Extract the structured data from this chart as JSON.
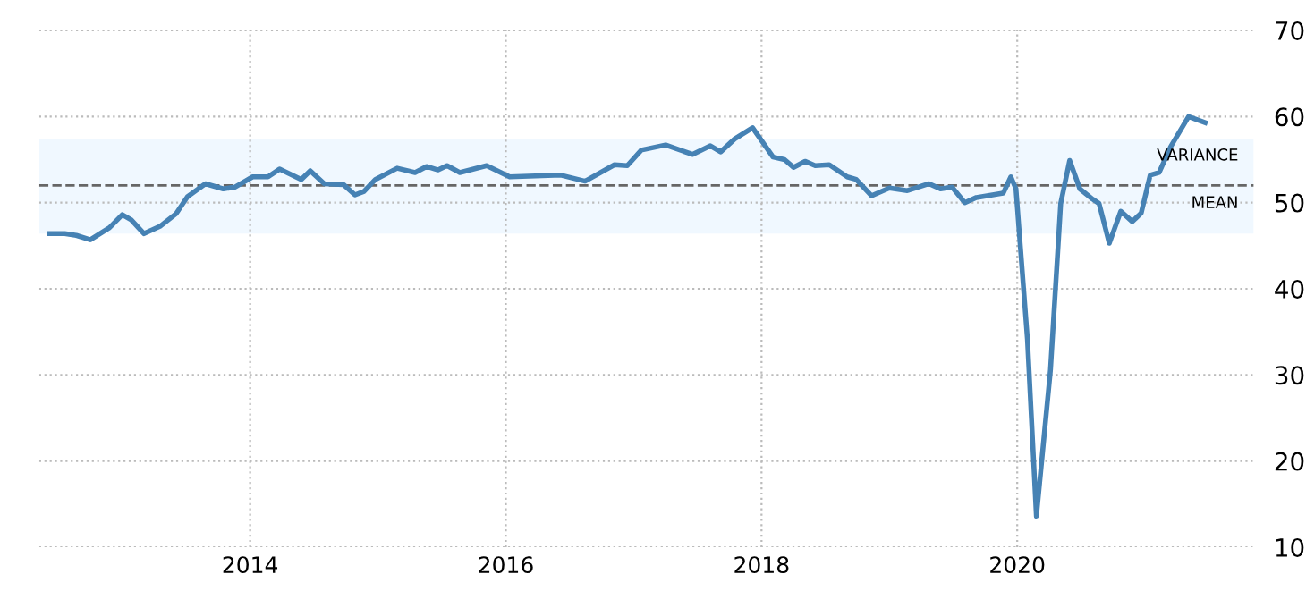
{
  "chart_data": {
    "type": "line",
    "x": [
      2012.43,
      2012.55,
      2012.64,
      2012.75,
      2012.9,
      2013.0,
      2013.07,
      2013.17,
      2013.3,
      2013.42,
      2013.51,
      2013.65,
      2013.79,
      2013.88,
      2014.02,
      2014.14,
      2014.23,
      2014.4,
      2014.47,
      2014.58,
      2014.73,
      2014.82,
      2014.89,
      2014.98,
      2015.15,
      2015.29,
      2015.38,
      2015.47,
      2015.54,
      2015.64,
      2015.85,
      2016.03,
      2016.43,
      2016.62,
      2016.85,
      2016.95,
      2017.06,
      2017.25,
      2017.46,
      2017.6,
      2017.68,
      2017.79,
      2017.93,
      2018.09,
      2018.18,
      2018.25,
      2018.34,
      2018.42,
      2018.53,
      2018.67,
      2018.74,
      2018.86,
      2019.0,
      2019.14,
      2019.31,
      2019.4,
      2019.49,
      2019.59,
      2019.68,
      2019.89,
      2019.95,
      2019.99,
      2020.08,
      2020.15,
      2020.26,
      2020.34,
      2020.41,
      2020.49,
      2020.59,
      2020.64,
      2020.72,
      2020.81,
      2020.9,
      2020.97,
      2021.04,
      2021.11,
      2021.2,
      2021.34,
      2021.47
    ],
    "series": [
      {
        "color": "#4682b4",
        "values": [
          46.4,
          46.4,
          46.2,
          45.7,
          47.1,
          48.6,
          48.0,
          46.4,
          47.3,
          48.7,
          50.7,
          52.2,
          51.6,
          51.8,
          53.0,
          53.0,
          53.9,
          52.7,
          53.7,
          52.2,
          52.1,
          50.9,
          51.3,
          52.7,
          54.0,
          53.5,
          54.2,
          53.8,
          54.3,
          53.5,
          54.3,
          53.0,
          53.2,
          52.5,
          54.4,
          54.3,
          56.1,
          56.7,
          55.6,
          56.6,
          55.9,
          57.4,
          58.7,
          55.3,
          55.0,
          54.1,
          54.8,
          54.3,
          54.4,
          53.0,
          52.7,
          50.8,
          51.7,
          51.4,
          52.2,
          51.6,
          51.8,
          50.0,
          50.6,
          51.1,
          53.0,
          51.6,
          34.1,
          13.6,
          30.6,
          49.9,
          54.9,
          51.6,
          50.4,
          49.9,
          45.3,
          49.0,
          47.8,
          48.8,
          53.2,
          53.5,
          56.5,
          60.0,
          59.3
        ]
      }
    ],
    "xlim": [
      2012.35,
      2021.85
    ],
    "xticks": [
      2014,
      2016,
      2018,
      2020
    ],
    "ylim": [
      10,
      70
    ],
    "yticks": [
      10,
      20,
      30,
      40,
      50,
      60,
      70
    ],
    "grid": true,
    "ref_lines": [
      {
        "axis": "y",
        "value": 52.0,
        "label": "MEAN",
        "color": "#666666",
        "line_style": "dashed"
      }
    ],
    "bands": [
      {
        "axis": "y",
        "from": 46.4,
        "to": 57.4,
        "label": "VARIANCE",
        "color": "#f0f8ff"
      }
    ]
  }
}
